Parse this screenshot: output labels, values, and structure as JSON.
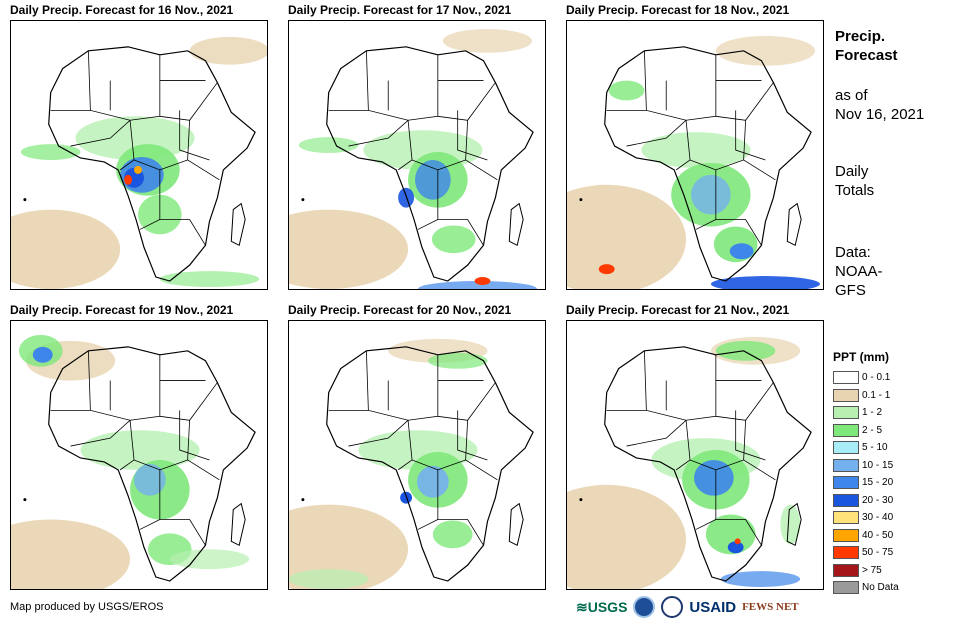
{
  "panels": [
    {
      "title": "Daily Precip. Forecast for 16 Nov., 2021"
    },
    {
      "title": "Daily Precip. Forecast for 17 Nov., 2021"
    },
    {
      "title": "Daily Precip. Forecast for 18 Nov., 2021"
    },
    {
      "title": "Daily Precip. Forecast for 19 Nov., 2021"
    },
    {
      "title": "Daily Precip. Forecast for 20 Nov., 2021"
    },
    {
      "title": "Daily Precip. Forecast for 21 Nov., 2021"
    }
  ],
  "sidebar": {
    "title_line1": "Precip.",
    "title_line2": "Forecast",
    "asof_line1": "as of",
    "asof_line2": "Nov 16, 2021",
    "totals_line1": "Daily",
    "totals_line2": "Totals",
    "data_line1": "Data:",
    "data_line2": "NOAA-",
    "data_line3": "GFS"
  },
  "legend": {
    "title": "PPT (mm)",
    "items": [
      {
        "label": "0 - 0.1",
        "color": "#ffffff"
      },
      {
        "label": "0.1 - 1",
        "color": "#e8d4b0"
      },
      {
        "label": "1 - 2",
        "color": "#b7f0b1"
      },
      {
        "label": "2 - 5",
        "color": "#7ee87a"
      },
      {
        "label": "5 - 10",
        "color": "#a8ecf7"
      },
      {
        "label": "10 - 15",
        "color": "#74b0ee"
      },
      {
        "label": "15 - 20",
        "color": "#3f86ea"
      },
      {
        "label": "20 - 30",
        "color": "#1a55e0"
      },
      {
        "label": "30 - 40",
        "color": "#ffe27a"
      },
      {
        "label": "40 - 50",
        "color": "#ffa500"
      },
      {
        "label": "50 - 75",
        "color": "#ff3a00"
      },
      {
        "label": "> 75",
        "color": "#a4161a"
      },
      {
        "label": "No Data",
        "color": "#9a9a9a"
      }
    ]
  },
  "credit": "Map produced by USGS/EROS",
  "logos": {
    "usgs": "≋USGS",
    "usaid": "USAID",
    "fews": "FEWS NET"
  }
}
